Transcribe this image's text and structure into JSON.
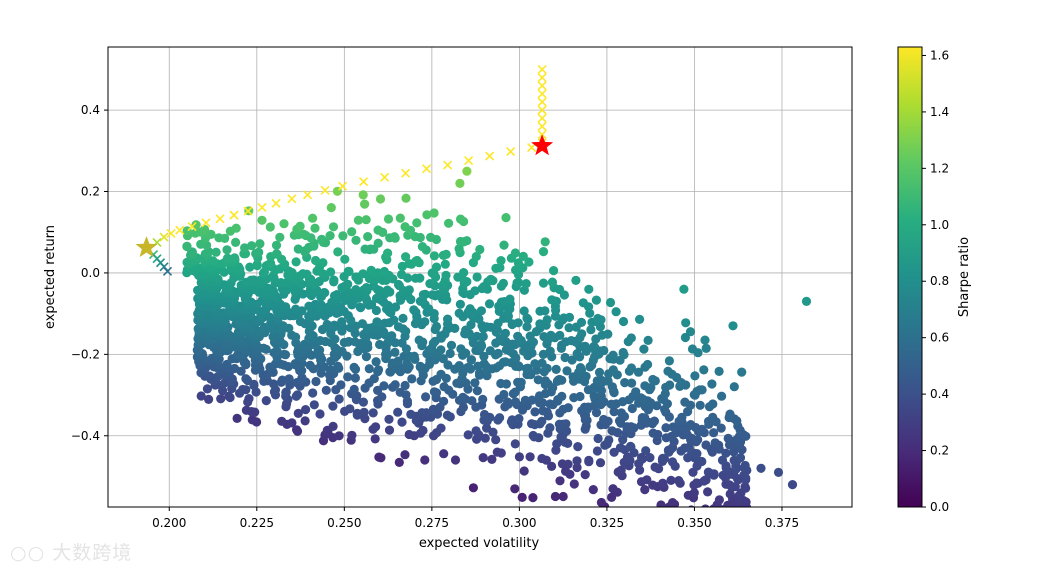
{
  "chart_data": {
    "type": "scatter",
    "xlabel": "expected volatility",
    "ylabel": "expected return",
    "xlim": [
      0.1825,
      0.395
    ],
    "ylim": [
      -0.575,
      0.555
    ],
    "xticks": [
      0.2,
      0.225,
      0.25,
      0.275,
      0.3,
      0.325,
      0.35,
      0.375
    ],
    "xtick_labels": [
      "0.200",
      "0.225",
      "0.250",
      "0.275",
      "0.300",
      "0.325",
      "0.350",
      "0.375"
    ],
    "yticks": [
      -0.4,
      -0.2,
      0.0,
      0.2,
      0.4
    ],
    "ytick_labels": [
      "−0.4",
      "−0.2",
      "0.0",
      "0.2",
      "0.4"
    ],
    "grid": true,
    "colormap": "viridis",
    "colorbar": {
      "label": "Sharpe ratio",
      "range": [
        0.0,
        1.63
      ],
      "ticks": [
        0.0,
        0.2,
        0.4,
        0.6,
        0.8,
        1.0,
        1.2,
        1.4,
        1.6
      ],
      "tick_labels": [
        "0.0",
        "0.2",
        "0.4",
        "0.6",
        "0.8",
        "1.0",
        "1.2",
        "1.4",
        "1.6"
      ]
    },
    "series": [
      {
        "kind": "random-portfolios",
        "marker": "circle",
        "count": 1900,
        "sample_points": [
          {
            "x": 0.382,
            "y": -0.07
          },
          {
            "x": 0.378,
            "y": -0.52
          },
          {
            "x": 0.374,
            "y": -0.49
          },
          {
            "x": 0.369,
            "y": -0.48
          },
          {
            "x": 0.361,
            "y": -0.13
          },
          {
            "x": 0.353,
            "y": -0.165
          },
          {
            "x": 0.358,
            "y": -0.46
          },
          {
            "x": 0.347,
            "y": -0.04
          },
          {
            "x": 0.209,
            "y": 0.1
          },
          {
            "x": 0.283,
            "y": 0.22
          },
          {
            "x": 0.285,
            "y": 0.25
          }
        ]
      },
      {
        "kind": "efficient-frontier",
        "marker": "x",
        "points": [
          {
            "x": 0.1965,
            "y": 0.075
          },
          {
            "x": 0.1985,
            "y": 0.088
          },
          {
            "x": 0.2005,
            "y": 0.097
          },
          {
            "x": 0.203,
            "y": 0.105
          },
          {
            "x": 0.2065,
            "y": 0.114
          },
          {
            "x": 0.2105,
            "y": 0.123
          },
          {
            "x": 0.2145,
            "y": 0.133
          },
          {
            "x": 0.2185,
            "y": 0.142
          },
          {
            "x": 0.2225,
            "y": 0.152
          },
          {
            "x": 0.2265,
            "y": 0.161
          },
          {
            "x": 0.2305,
            "y": 0.171
          },
          {
            "x": 0.235,
            "y": 0.182
          },
          {
            "x": 0.2395,
            "y": 0.192
          },
          {
            "x": 0.2445,
            "y": 0.203
          },
          {
            "x": 0.2495,
            "y": 0.213
          },
          {
            "x": 0.2555,
            "y": 0.224
          },
          {
            "x": 0.2615,
            "y": 0.235
          },
          {
            "x": 0.2675,
            "y": 0.245
          },
          {
            "x": 0.2735,
            "y": 0.256
          },
          {
            "x": 0.2795,
            "y": 0.265
          },
          {
            "x": 0.2855,
            "y": 0.276
          },
          {
            "x": 0.2915,
            "y": 0.287
          },
          {
            "x": 0.2975,
            "y": 0.298
          },
          {
            "x": 0.3035,
            "y": 0.308
          },
          {
            "x": 0.3065,
            "y": 0.32
          },
          {
            "x": 0.3065,
            "y": 0.34
          },
          {
            "x": 0.3065,
            "y": 0.36
          },
          {
            "x": 0.3065,
            "y": 0.38
          },
          {
            "x": 0.3065,
            "y": 0.4
          },
          {
            "x": 0.3065,
            "y": 0.42
          },
          {
            "x": 0.3065,
            "y": 0.44
          },
          {
            "x": 0.3065,
            "y": 0.46
          },
          {
            "x": 0.3065,
            "y": 0.48
          },
          {
            "x": 0.3065,
            "y": 0.5
          },
          {
            "x": 0.1955,
            "y": 0.045
          },
          {
            "x": 0.1965,
            "y": 0.035
          },
          {
            "x": 0.1975,
            "y": 0.025
          },
          {
            "x": 0.1985,
            "y": 0.015
          },
          {
            "x": 0.1995,
            "y": 0.004
          }
        ]
      },
      {
        "kind": "max-sharpe-portfolio",
        "marker": "star",
        "color": "#ff0000",
        "x": 0.3065,
        "y": 0.312
      },
      {
        "kind": "min-volatility-portfolio",
        "marker": "star",
        "color": "#c8b62a",
        "x": 0.1935,
        "y": 0.062
      }
    ]
  },
  "watermark": {
    "text": "大数跨境"
  }
}
